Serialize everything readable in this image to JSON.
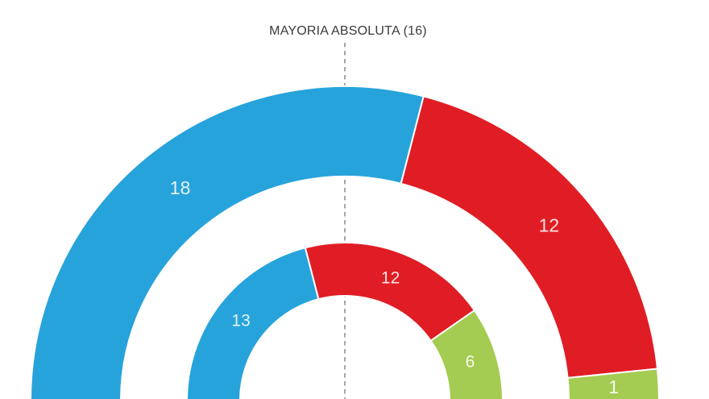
{
  "chart_data": {
    "type": "half-donut",
    "title": "MAYORIA ABSOLUTA (16)",
    "majority_threshold": 16,
    "total_seats": 31,
    "orientation": "semicircle-top",
    "start_angle_deg": 180,
    "end_angle_deg": 0,
    "background_color": "#ffffff",
    "majority_line_color": "#8f8f8f",
    "label_color": "#ffffff",
    "separator_color": "#ffffff",
    "rings": [
      {
        "name": "outer",
        "segments": [
          {
            "value": 18,
            "color": "#27a3db"
          },
          {
            "value": 12,
            "color": "#e01d24"
          },
          {
            "value": 1,
            "color": "#a4cc52"
          }
        ]
      },
      {
        "name": "inner",
        "segments": [
          {
            "value": 13,
            "color": "#27a3db"
          },
          {
            "value": 12,
            "color": "#e01d24"
          },
          {
            "value": 6,
            "color": "#a4cc52"
          }
        ]
      }
    ]
  }
}
